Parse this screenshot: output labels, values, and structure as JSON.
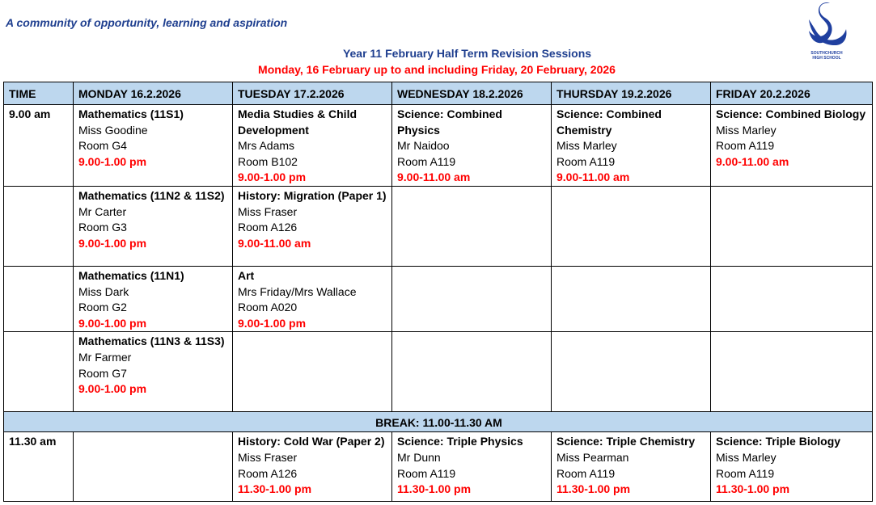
{
  "motto": "A community of opportunity, learning and aspiration",
  "logo_text": "SOUTHCHURCH HIGH SCHOOL",
  "title": "Year 11 February Half Term Revision Sessions",
  "subtitle": "Monday, 16 February up to and including Friday, 20 February, 2026",
  "headers": [
    "TIME",
    "MONDAY 16.2.2026",
    "TUESDAY 17.2.2026",
    "WEDNESDAY 18.2.2026",
    "THURSDAY 19.2.2026",
    "FRIDAY 20.2.2026"
  ],
  "rows": [
    {
      "time": "9.00 am",
      "cells": [
        {
          "subject": "Mathematics (11S1)",
          "teacher": "Miss Goodine",
          "room": "Room G4",
          "hours": "9.00-1.00 pm"
        },
        {
          "subject": "Media Studies & Child Development",
          "teacher": "Mrs Adams",
          "room": "Room B102",
          "hours": "9.00-1.00 pm"
        },
        {
          "subject": "Science: Combined Physics",
          "teacher": "Mr Naidoo",
          "room": "Room A119",
          "hours": "9.00-11.00 am"
        },
        {
          "subject": "Science: Combined Chemistry",
          "teacher": "Miss Marley",
          "room": "Room A119",
          "hours": "9.00-11.00 am"
        },
        {
          "subject": "Science: Combined Biology",
          "teacher": "Miss Marley",
          "room": "Room A119",
          "hours": "9.00-11.00 am"
        }
      ]
    },
    {
      "time": "",
      "cells": [
        {
          "subject": "Mathematics (11N2 & 11S2)",
          "teacher": "Mr Carter",
          "room": "Room G3",
          "hours": "9.00-1.00 pm"
        },
        {
          "subject": "History: Migration (Paper 1)",
          "teacher": "Miss Fraser",
          "room": "Room A126",
          "hours": "9.00-11.00 am"
        },
        null,
        null,
        null
      ]
    },
    {
      "time": "",
      "cells": [
        {
          "subject": "Mathematics (11N1)",
          "teacher": "Miss Dark",
          "room": "Room G2",
          "hours": "9.00-1.00 pm"
        },
        {
          "subject": "Art",
          "teacher": "Mrs Friday/Mrs Wallace",
          "room": "Room A020",
          "hours": "9.00-1.00 pm"
        },
        null,
        null,
        null
      ]
    },
    {
      "time": "",
      "cells": [
        {
          "subject": "Mathematics (11N3 & 11S3)",
          "teacher": "Mr Farmer",
          "room": "Room G7",
          "hours": "9.00-1.00 pm"
        },
        null,
        null,
        null,
        null
      ]
    }
  ],
  "break": "BREAK: 11.00-11.30 AM",
  "after_break": {
    "time": "11.30 am",
    "cells": [
      null,
      {
        "subject": "History: Cold War (Paper 2)",
        "teacher": "Miss Fraser",
        "room": "Room A126",
        "hours": "11.30-1.00 pm"
      },
      {
        "subject": "Science: Triple Physics",
        "teacher": "Mr Dunn",
        "room": "Room A119",
        "hours": "11.30-1.00 pm"
      },
      {
        "subject": "Science: Triple Chemistry",
        "teacher": "Miss Pearman",
        "room": "Room A119",
        "hours": "11.30-1.00 pm"
      },
      {
        "subject": "Science: Triple Biology",
        "teacher": "Miss Marley",
        "room": "Room A119",
        "hours": "11.30-1.00 pm"
      }
    ]
  },
  "colors": {
    "header_bg": "#bdd7ee",
    "accent_red": "#ff0000",
    "brand_blue": "#1f3f8f"
  }
}
